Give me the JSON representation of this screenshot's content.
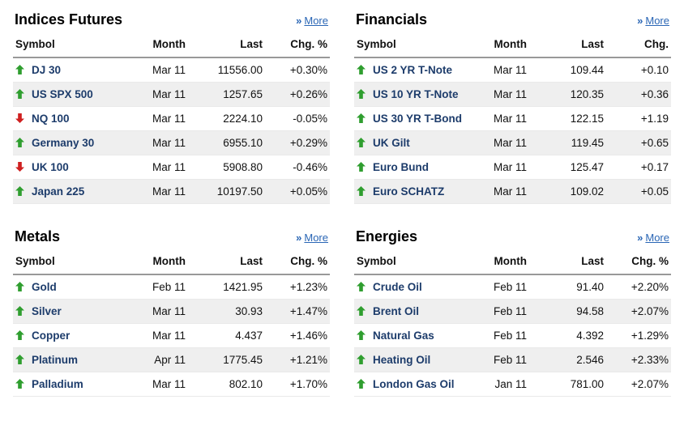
{
  "colors": {
    "positive": "#008000",
    "negative": "#c40000",
    "symbol_link": "#1d3c6b",
    "more_link": "#2a66b5",
    "header_rule": "#999999",
    "row_alt": "#efefef",
    "arrow_up": "#2f9e2f",
    "arrow_down": "#cf2020"
  },
  "sections": [
    {
      "id": "indices-futures",
      "title": "Indices Futures",
      "more_label": "More",
      "more_icon": "»",
      "headers": [
        "Symbol",
        "Month",
        "Last",
        "Chg. %"
      ],
      "rows": [
        {
          "dir": "up",
          "symbol": "DJ 30",
          "month": "Mar 11",
          "last": "11556.00",
          "chg": "+0.30%"
        },
        {
          "dir": "up",
          "symbol": "US SPX 500",
          "month": "Mar 11",
          "last": "1257.65",
          "chg": "+0.26%"
        },
        {
          "dir": "down",
          "symbol": "NQ 100",
          "month": "Mar 11",
          "last": "2224.10",
          "chg": "-0.05%"
        },
        {
          "dir": "up",
          "symbol": "Germany 30",
          "month": "Mar 11",
          "last": "6955.10",
          "chg": "+0.29%"
        },
        {
          "dir": "down",
          "symbol": "UK 100",
          "month": "Mar 11",
          "last": "5908.80",
          "chg": "-0.46%"
        },
        {
          "dir": "up",
          "symbol": "Japan 225",
          "month": "Mar 11",
          "last": "10197.50",
          "chg": "+0.05%"
        }
      ]
    },
    {
      "id": "financials",
      "title": "Financials",
      "more_label": "More",
      "more_icon": "»",
      "headers": [
        "Symbol",
        "Month",
        "Last",
        "Chg."
      ],
      "rows": [
        {
          "dir": "up",
          "symbol": "US 2 YR T-Note",
          "month": "Mar 11",
          "last": "109.44",
          "chg": "+0.10"
        },
        {
          "dir": "up",
          "symbol": "US 10 YR T-Note",
          "month": "Mar 11",
          "last": "120.35",
          "chg": "+0.36"
        },
        {
          "dir": "up",
          "symbol": "US 30 YR T-Bond",
          "month": "Mar 11",
          "last": "122.15",
          "chg": "+1.19"
        },
        {
          "dir": "up",
          "symbol": "UK Gilt",
          "month": "Mar 11",
          "last": "119.45",
          "chg": "+0.65"
        },
        {
          "dir": "up",
          "symbol": "Euro Bund",
          "month": "Mar 11",
          "last": "125.47",
          "chg": "+0.17"
        },
        {
          "dir": "up",
          "symbol": "Euro SCHATZ",
          "month": "Mar 11",
          "last": "109.02",
          "chg": "+0.05"
        }
      ]
    },
    {
      "id": "metals",
      "title": "Metals",
      "more_label": "More",
      "more_icon": "»",
      "headers": [
        "Symbol",
        "Month",
        "Last",
        "Chg. %"
      ],
      "rows": [
        {
          "dir": "up",
          "symbol": "Gold",
          "month": "Feb 11",
          "last": "1421.95",
          "chg": "+1.23%"
        },
        {
          "dir": "up",
          "symbol": "Silver",
          "month": "Mar 11",
          "last": "30.93",
          "chg": "+1.47%"
        },
        {
          "dir": "up",
          "symbol": "Copper",
          "month": "Mar 11",
          "last": "4.437",
          "chg": "+1.46%"
        },
        {
          "dir": "up",
          "symbol": "Platinum",
          "month": "Apr 11",
          "last": "1775.45",
          "chg": "+1.21%"
        },
        {
          "dir": "up",
          "symbol": "Palladium",
          "month": "Mar 11",
          "last": "802.10",
          "chg": "+1.70%"
        }
      ]
    },
    {
      "id": "energies",
      "title": "Energies",
      "more_label": "More",
      "more_icon": "»",
      "headers": [
        "Symbol",
        "Month",
        "Last",
        "Chg. %"
      ],
      "rows": [
        {
          "dir": "up",
          "symbol": "Crude Oil",
          "month": "Feb 11",
          "last": "91.40",
          "chg": "+2.20%"
        },
        {
          "dir": "up",
          "symbol": "Brent Oil",
          "month": "Feb 11",
          "last": "94.58",
          "chg": "+2.07%"
        },
        {
          "dir": "up",
          "symbol": "Natural Gas",
          "month": "Feb 11",
          "last": "4.392",
          "chg": "+1.29%"
        },
        {
          "dir": "up",
          "symbol": "Heating Oil",
          "month": "Feb 11",
          "last": "2.546",
          "chg": "+2.33%"
        },
        {
          "dir": "up",
          "symbol": "London Gas Oil",
          "month": "Jan 11",
          "last": "781.00",
          "chg": "+2.07%"
        }
      ]
    }
  ]
}
